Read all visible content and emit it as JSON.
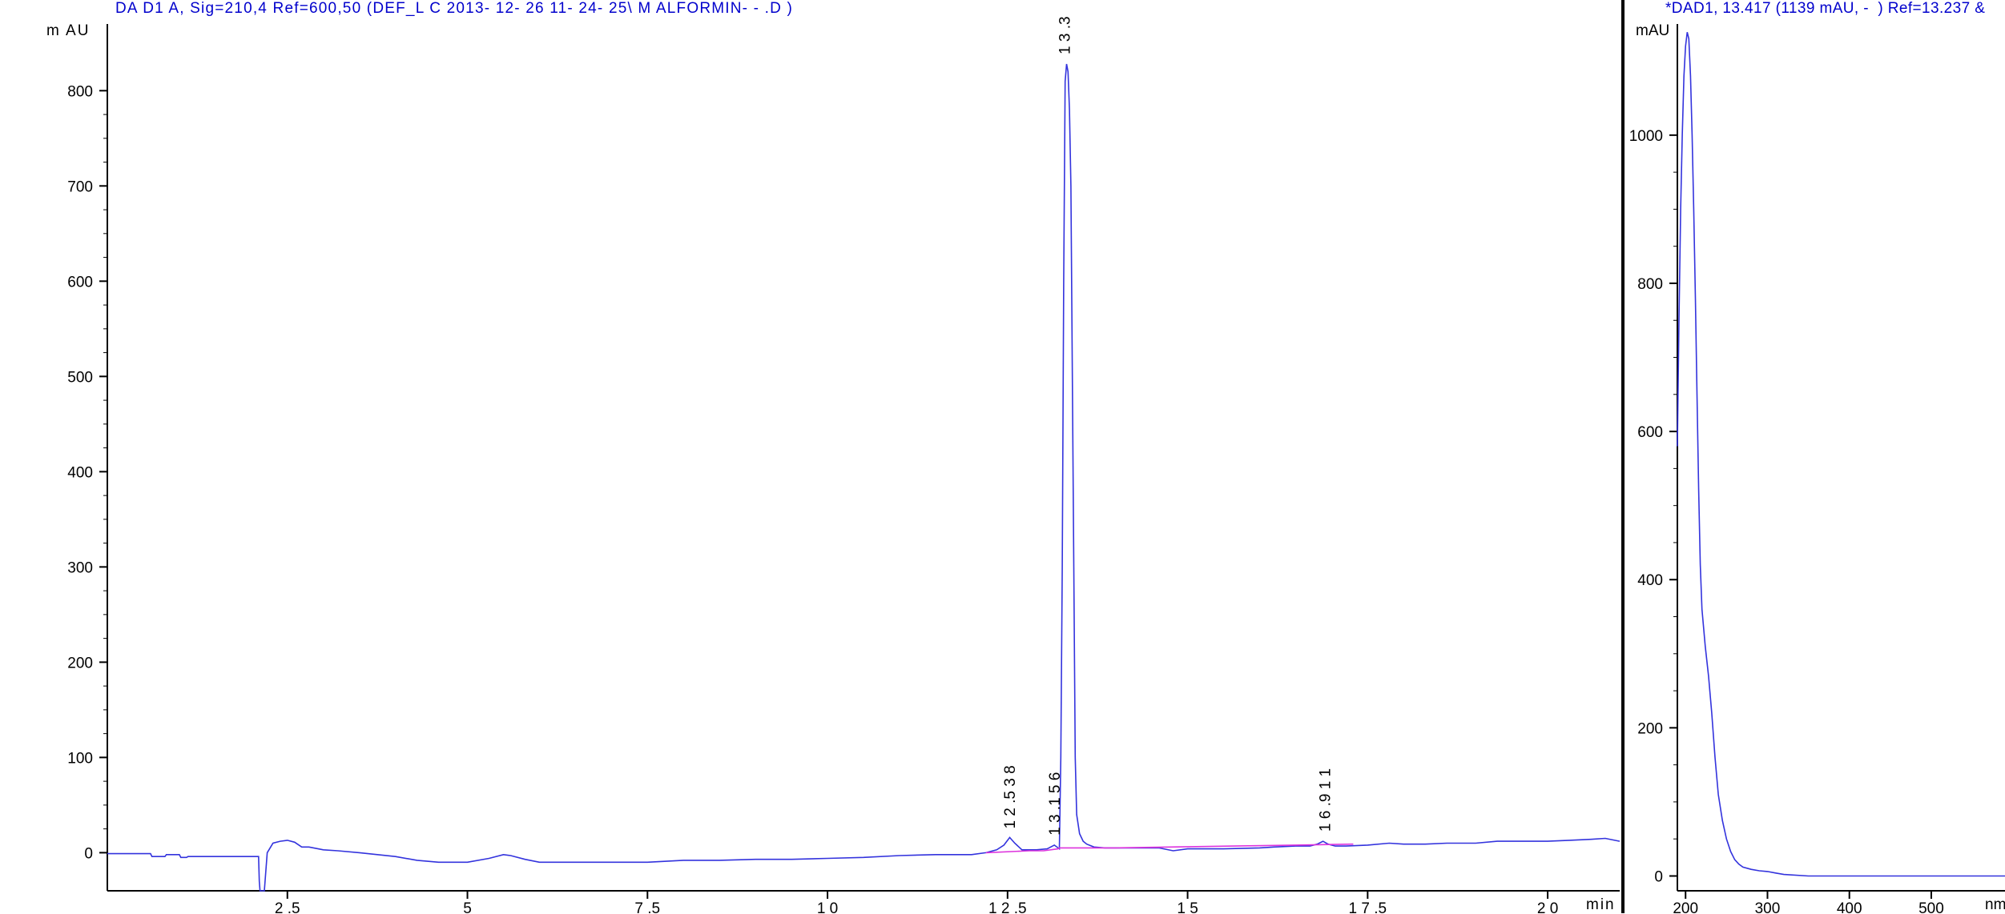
{
  "colors": {
    "trace": "#3333dd",
    "baseline": "#dd33dd",
    "axis": "#000000",
    "title": "#0000cc"
  },
  "chart_data": [
    {
      "type": "line",
      "title": "DA D1 A, Sig=210,4 Ref=600,50 (DEF_L C 2013- 12- 26 11- 24- 25\\ M ALFORMIN- - .D )",
      "ylabel": "m AU",
      "xlabel": "min",
      "xlim": [
        0,
        21
      ],
      "ylim": [
        -40,
        870
      ],
      "xticks": [
        2.5,
        5,
        7.5,
        10,
        12.5,
        15,
        17.5,
        20
      ],
      "xtick_labels": [
        "2 .5",
        "5",
        "7 .5",
        "1 0",
        "1 2 .5",
        "1 5",
        "1 7 .5",
        "2 0"
      ],
      "yticks": [
        0,
        100,
        200,
        300,
        400,
        500,
        600,
        700,
        800
      ],
      "peak_labels": [
        {
          "x": 12.538,
          "y": 15,
          "text": "1 2 .5 3 8"
        },
        {
          "x": 13.156,
          "y": 8,
          "text": "1 3 .1 5 6"
        },
        {
          "x": 13.3,
          "y": 828,
          "text": "1 3 .3"
        },
        {
          "x": 16.911,
          "y": 12,
          "text": "1 6 .9 1 1"
        }
      ],
      "series": [
        {
          "x": [
            0,
            0.6,
            0.62,
            0.8,
            0.82,
            1.0,
            1.02,
            1.1,
            1.12,
            2.1,
            2.11,
            2.12,
            2.18,
            2.22,
            2.3,
            2.4,
            2.5,
            2.6,
            2.7,
            2.8,
            3.0,
            3.2,
            3.5,
            4.0,
            4.3,
            4.6,
            5.0,
            5.3,
            5.5,
            5.6,
            5.8,
            6.0,
            6.5,
            7.0,
            7.5,
            8.0,
            8.5,
            9.0,
            9.5,
            10.0,
            10.5,
            11.0,
            11.5,
            12.0,
            12.2,
            12.35,
            12.45,
            12.53,
            12.6,
            12.7,
            12.9,
            13.05,
            13.15,
            13.22,
            13.24,
            13.26,
            13.28,
            13.3,
            13.32,
            13.34,
            13.36,
            13.38,
            13.4,
            13.42,
            13.44,
            13.46,
            13.5,
            13.55,
            13.6,
            13.7,
            13.85,
            14.0,
            14.3,
            14.6,
            14.8,
            15.0,
            15.3,
            15.5,
            16.0,
            16.2,
            16.5,
            16.7,
            16.8,
            16.88,
            16.95,
            17.05,
            17.2,
            17.5,
            17.8,
            18.0,
            18.3,
            18.6,
            19.0,
            19.3,
            19.6,
            19.8,
            20.0,
            20.3,
            20.6,
            20.8,
            21.0
          ],
          "y": [
            -1,
            -1,
            -4,
            -4,
            -2,
            -2,
            -5,
            -5,
            -4,
            -4,
            -30,
            -40,
            -40,
            0,
            10,
            12,
            13,
            11,
            6,
            6,
            3,
            2,
            0,
            -4,
            -8,
            -10,
            -10,
            -6,
            -2,
            -3,
            -7,
            -10,
            -10,
            -10,
            -10,
            -8,
            -8,
            -7,
            -7,
            -6,
            -5,
            -3,
            -2,
            -2,
            0,
            3,
            8,
            16,
            10,
            3,
            3,
            4,
            8,
            4,
            100,
            300,
            600,
            810,
            828,
            820,
            780,
            700,
            500,
            300,
            100,
            40,
            20,
            12,
            9,
            6,
            5,
            5,
            5,
            5,
            2,
            4,
            4,
            4,
            5,
            6,
            7,
            7,
            9,
            12,
            9,
            7,
            7,
            8,
            10,
            9,
            9,
            10,
            10,
            12,
            12,
            12,
            12,
            13,
            14,
            15,
            12
          ]
        }
      ],
      "baseline": {
        "x": [
          12.2,
          12.8,
          13.0,
          13.2,
          13.22,
          14.0,
          16.5,
          17.3
        ],
        "y": [
          0,
          2,
          2,
          4,
          5,
          5,
          8,
          9
        ]
      }
    },
    {
      "type": "line",
      "title": "*DAD1, 13.417 (1139 mAU, -  ) Ref=13.237 &",
      "ylabel": "mAU",
      "xlabel": "nm",
      "xlim": [
        190,
        590
      ],
      "ylim": [
        -20,
        1150
      ],
      "xticks": [
        200,
        300,
        400,
        500
      ],
      "xtick_labels": [
        "200",
        "300",
        "400",
        "500"
      ],
      "yticks": [
        0,
        200,
        400,
        600,
        800,
        1000
      ],
      "series": [
        {
          "x": [
            190,
            192,
            194,
            196,
            198,
            200,
            202,
            204,
            206,
            208,
            210,
            212,
            214,
            216,
            218,
            220,
            224,
            228,
            232,
            236,
            240,
            245,
            250,
            255,
            260,
            265,
            270,
            280,
            290,
            300,
            310,
            320,
            350,
            400,
            450,
            500,
            550,
            590
          ],
          "y": [
            580,
            750,
            900,
            1000,
            1080,
            1120,
            1139,
            1130,
            1080,
            1000,
            900,
            780,
            650,
            520,
            420,
            360,
            310,
            270,
            220,
            160,
            110,
            75,
            50,
            33,
            22,
            16,
            12,
            9,
            7,
            6,
            4,
            2,
            0,
            0,
            0,
            0,
            0,
            0
          ]
        }
      ]
    }
  ]
}
